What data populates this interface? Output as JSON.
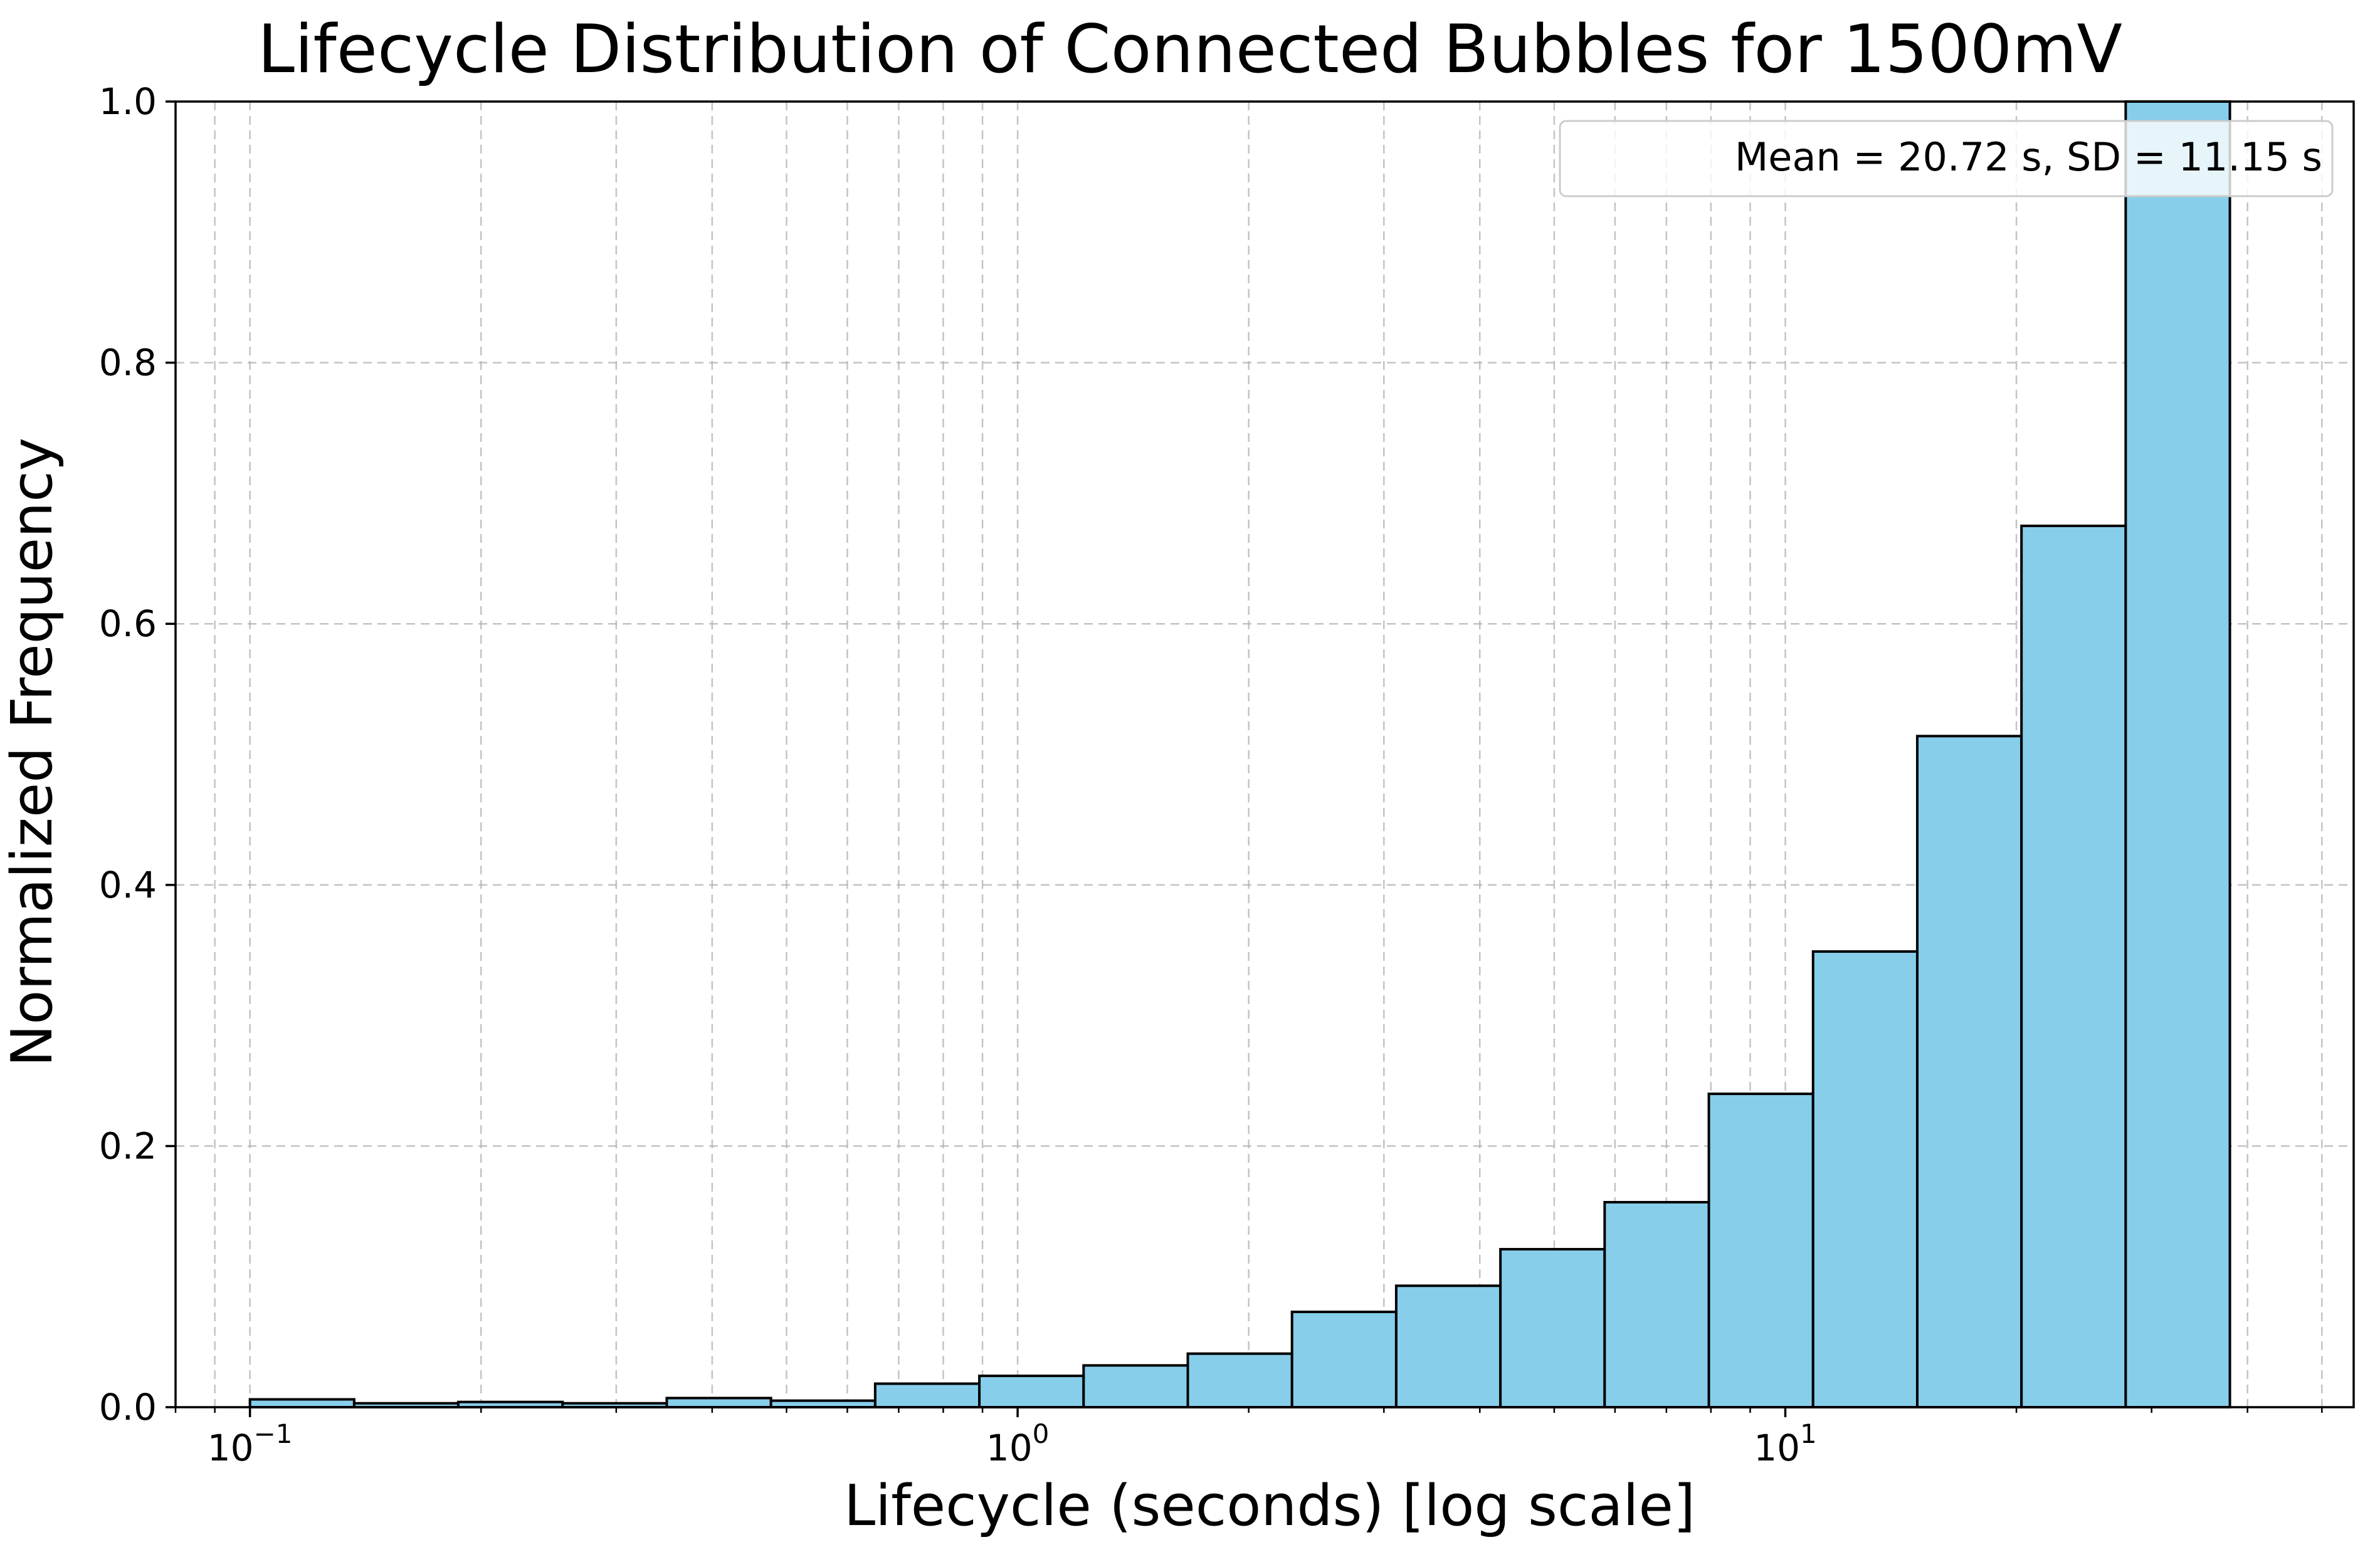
{
  "chart_data": {
    "type": "bar",
    "title": "Lifecycle Distribution of Connected Bubbles for 1500mV",
    "xlabel": "Lifecycle (seconds) [log scale]",
    "ylabel": "Normalized Frequency",
    "xscale": "log",
    "xlim": [
      0.08,
      55
    ],
    "ylim": [
      0,
      1.0
    ],
    "grid": true,
    "bar_color": "#87ceeb",
    "edge_color": "#000000",
    "y_ticks": [
      {
        "value": 0.0,
        "label": "0.0"
      },
      {
        "value": 0.2,
        "label": "0.2"
      },
      {
        "value": 0.4,
        "label": "0.4"
      },
      {
        "value": 0.6,
        "label": "0.6"
      },
      {
        "value": 0.8,
        "label": "0.8"
      },
      {
        "value": 1.0,
        "label": "1.0"
      }
    ],
    "x_major_ticks": [
      {
        "value": 0.1,
        "base": "10",
        "exp": "−1"
      },
      {
        "value": 1,
        "base": "10",
        "exp": "0"
      },
      {
        "value": 10,
        "base": "10",
        "exp": "1"
      }
    ],
    "bin_edges": [
      0.1,
      0.1367,
      0.1868,
      0.2554,
      0.3491,
      0.4772,
      0.6523,
      0.8916,
      1.2188,
      1.666,
      2.2773,
      3.1129,
      4.2551,
      5.8164,
      7.9506,
      10.868,
      14.856,
      20.307,
      27.758,
      37.943
    ],
    "values": [
      0.006,
      0.003,
      0.004,
      0.003,
      0.007,
      0.005,
      0.018,
      0.024,
      0.032,
      0.041,
      0.073,
      0.093,
      0.121,
      0.157,
      0.24,
      0.349,
      0.514,
      0.675,
      1.0
    ],
    "legend": {
      "position": "top-right",
      "entries": [
        "Mean = 20.72 s, SD = 11.15 s"
      ]
    }
  }
}
